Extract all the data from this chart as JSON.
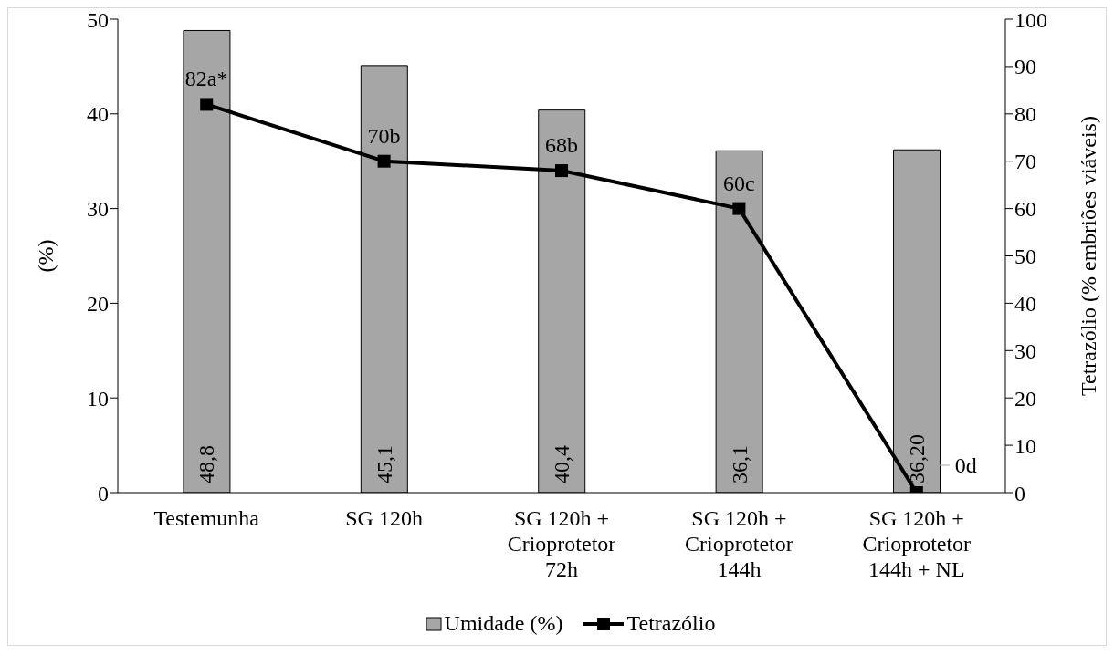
{
  "chart_data": {
    "type": "bar",
    "categories": [
      "Testemunha",
      "SG 120h",
      "SG 120h + Crioprotetor 72h",
      "SG 120h + Crioprotetor 144h",
      "SG 120h + Crioprotetor 144h + NL"
    ],
    "series": [
      {
        "name": "Umidade (%)",
        "color": "#a6a6a6",
        "values": [
          48.8,
          45.1,
          40.4,
          36.1,
          36.2
        ],
        "value_labels": [
          "48,8",
          "45,1",
          "40,4",
          "36,1",
          "36,20"
        ]
      },
      {
        "name": "Tetrazólio",
        "type": "line",
        "axis": "y2",
        "color": "#000000",
        "values": [
          82,
          70,
          68,
          60,
          0
        ],
        "value_labels": [
          "82a*",
          "70b",
          "68b",
          "60c",
          "0d"
        ]
      }
    ],
    "ylabel": "(%)",
    "y2label": "Tetrazólio (% embriões viáveis)",
    "ylim": [
      0,
      50
    ],
    "yticks": [
      0,
      10,
      20,
      30,
      40,
      50
    ],
    "y2lim": [
      0,
      100
    ],
    "y2ticks": [
      0,
      10,
      20,
      30,
      40,
      50,
      60,
      70,
      80,
      90,
      100
    ],
    "grid": false,
    "legend": "bottom",
    "marker": "square",
    "line_style": "solid"
  }
}
